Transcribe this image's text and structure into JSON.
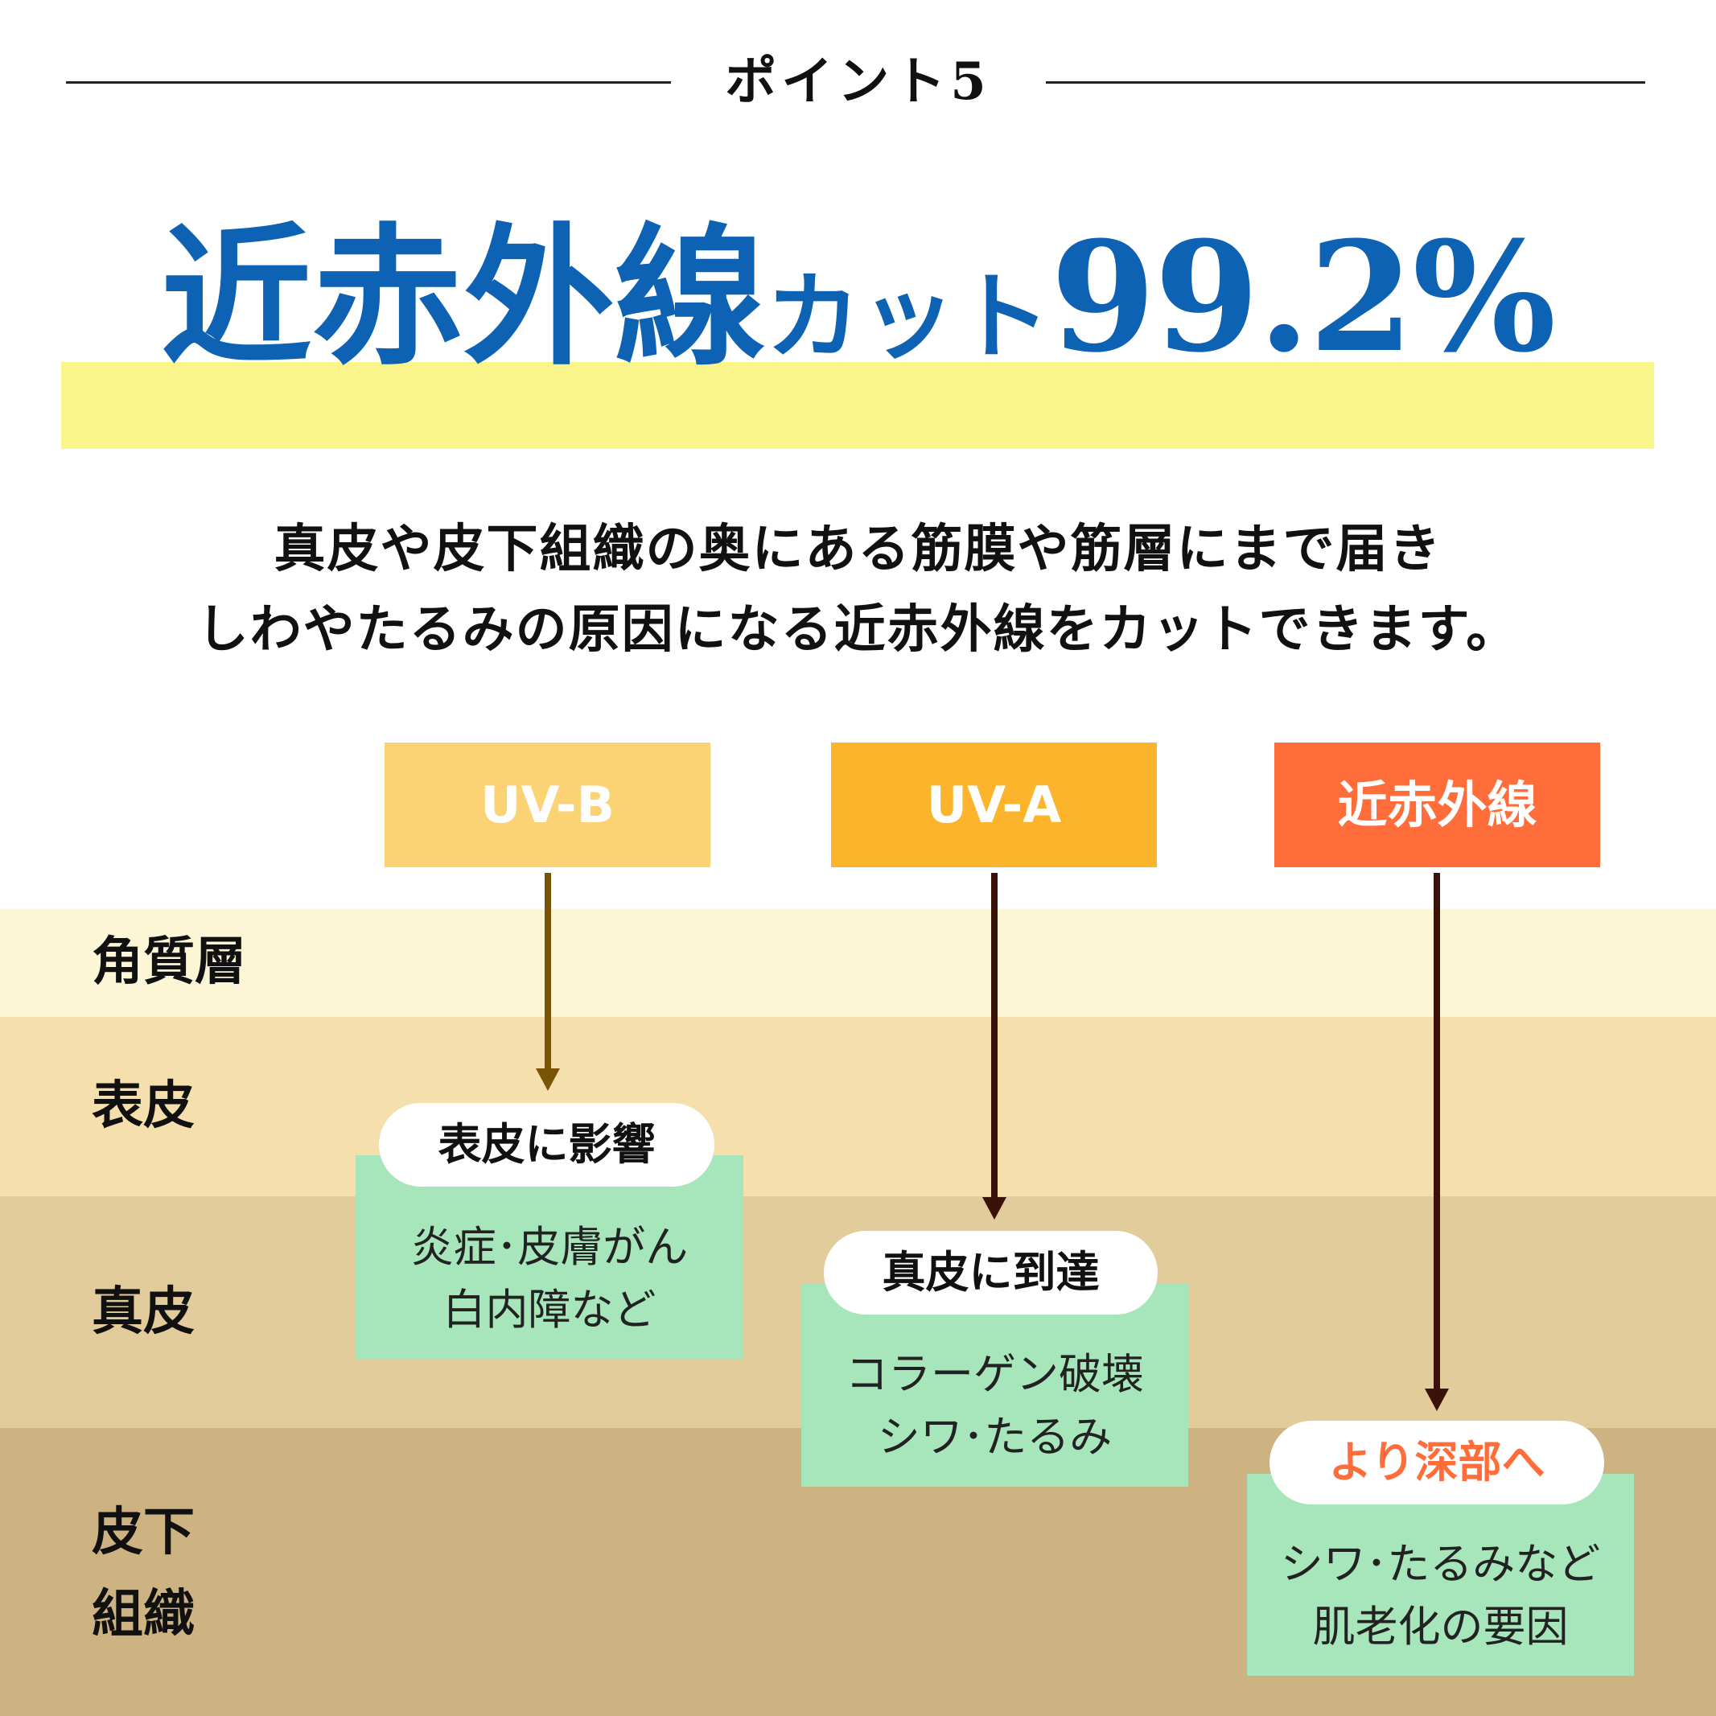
{
  "header": {
    "point_label": "ポイント5"
  },
  "headline": {
    "part1": "近赤外線",
    "part2": "カット",
    "part3": "99.2%",
    "color": "#0e62b3",
    "highlight_color": "#f9f58b"
  },
  "description": {
    "line1": "真皮や皮下組織の奥にある筋膜や筋層にまで届き",
    "line2": "しわやたるみの原因になる近赤外線をカットできます。"
  },
  "layers": [
    {
      "label": "角質層",
      "color": "#fdf6d6"
    },
    {
      "label": "表皮",
      "color": "#f5dfac"
    },
    {
      "label": "真皮",
      "color": "#e2cc9c"
    },
    {
      "label_line1": "皮下",
      "label_line2": "組織",
      "color": "#cdb282"
    }
  ],
  "rays": [
    {
      "label": "UV-B",
      "box_color": "#fbd274",
      "arrow_color": "#7a5406",
      "pill": "表皮に影響",
      "pill_color": "#111111",
      "detail_line1": "炎症･皮膚がん",
      "detail_line2": "白内障など"
    },
    {
      "label": "UV-A",
      "box_color": "#fbb42c",
      "arrow_color": "#3a1208",
      "pill": "真皮に到達",
      "pill_color": "#111111",
      "detail_line1": "コラーゲン破壊",
      "detail_line2": "シワ･たるみ"
    },
    {
      "label": "近赤外線",
      "box_color": "#ff6d3a",
      "arrow_color": "#3a1208",
      "pill": "より深部へ",
      "pill_color": "#ff6d3a",
      "detail_line1": "シワ･たるみなど",
      "detail_line2": "肌老化の要因"
    }
  ],
  "card_color": "#a6e6ba"
}
